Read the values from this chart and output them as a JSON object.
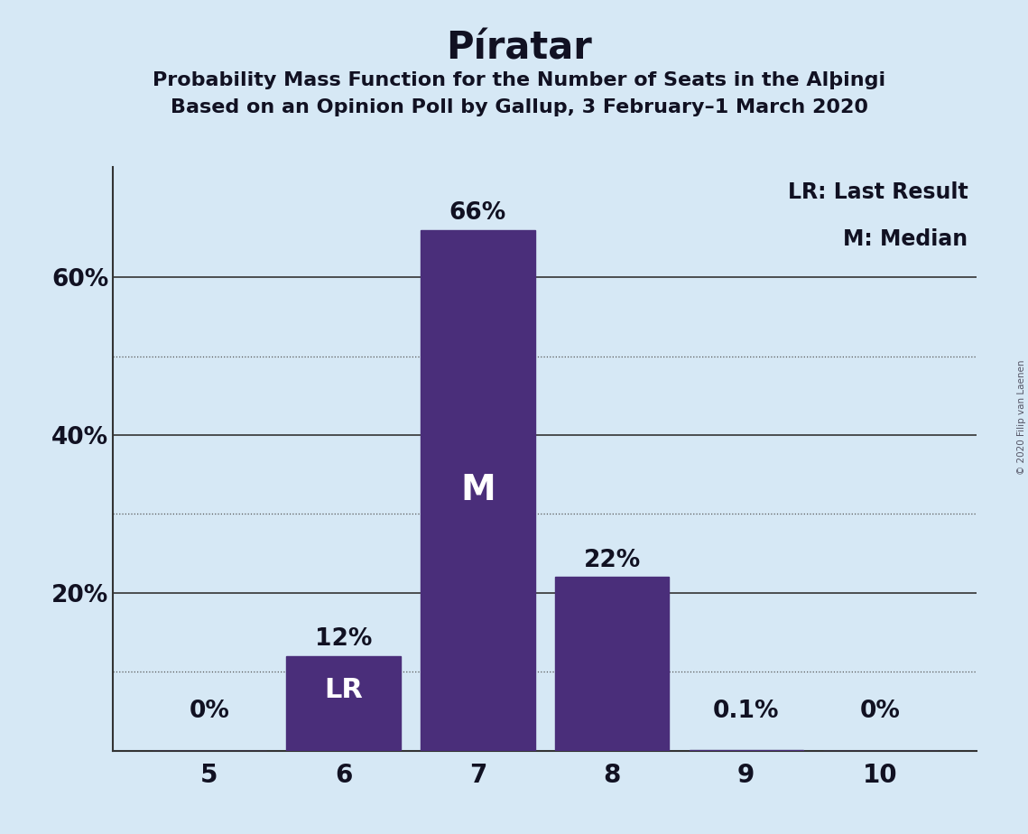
{
  "title": "Píratar",
  "subtitle1": "Probability Mass Function for the Number of Seats in the Alþingi",
  "subtitle2": "Based on an Opinion Poll by Gallup, 3 February–1 March 2020",
  "categories": [
    5,
    6,
    7,
    8,
    9,
    10
  ],
  "values": [
    0.0,
    0.12,
    0.66,
    0.22,
    0.001,
    0.0
  ],
  "bar_labels": [
    "0%",
    "12%",
    "66%",
    "22%",
    "0.1%",
    "0%"
  ],
  "bar_color": "#4a2e7a",
  "background_color": "#d6e8f5",
  "text_color": "#111122",
  "bar_text_color_inside": "#ffffff",
  "bar_text_color_outside": "#111122",
  "lr_bar": 6,
  "median_bar": 7,
  "legend_lr": "LR: Last Result",
  "legend_m": "M: Median",
  "copyright": "© 2020 Filip van Laenen",
  "ylim": [
    0,
    0.74
  ],
  "ytick_positions": [
    0.2,
    0.4,
    0.6
  ],
  "ytick_labels": [
    "20%",
    "40%",
    "60%"
  ],
  "solid_lines": [
    0.2,
    0.4,
    0.6
  ],
  "dotted_lines": [
    0.1,
    0.3,
    0.5
  ],
  "title_fontsize": 30,
  "subtitle_fontsize": 16,
  "bar_label_fontsize": 19,
  "axis_tick_fontsize": 19,
  "legend_fontsize": 17,
  "lr_label_fontsize": 22,
  "m_label_fontsize": 28
}
